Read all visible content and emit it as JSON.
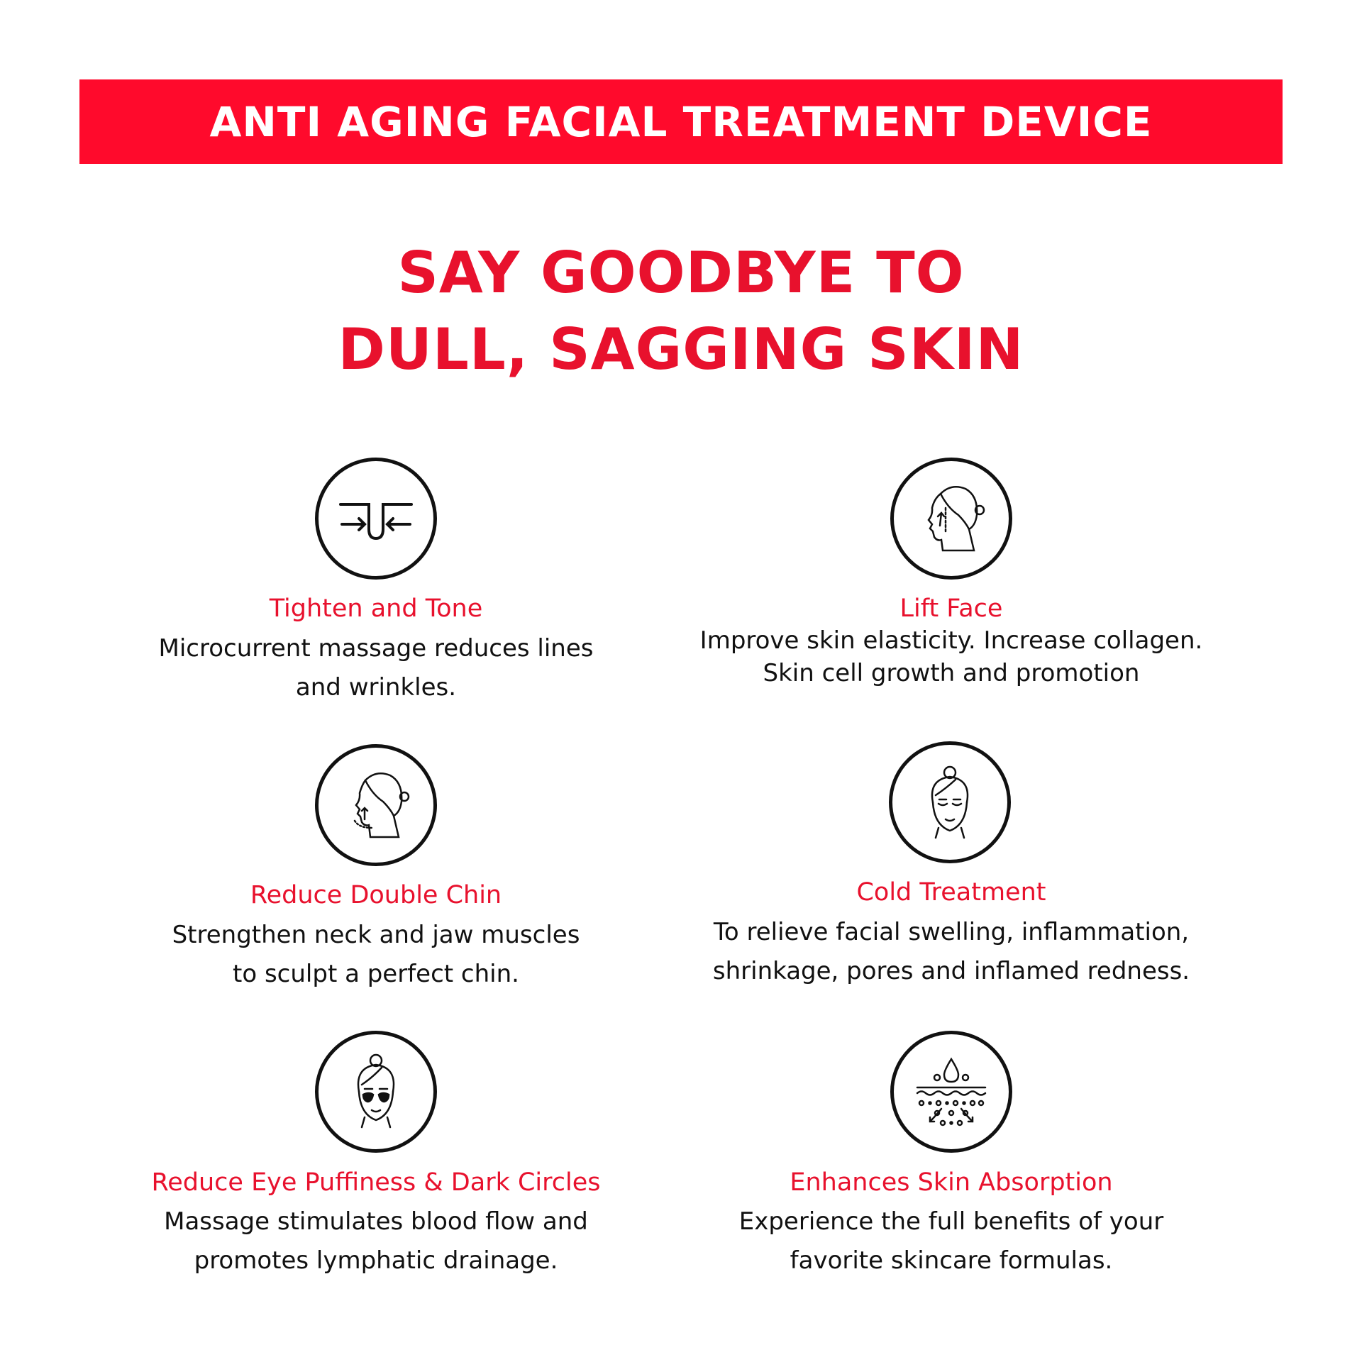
{
  "banner": {
    "title": "ANTI AGING FACIAL TREATMENT DEVICE"
  },
  "headline": {
    "line1": "SAY GOODBYE TO",
    "line2": "DULL, SAGGING SKIN"
  },
  "colors": {
    "banner_red": "#ff0a2c",
    "text_red": "#e8112d",
    "text_dark": "#111111"
  },
  "features": [
    {
      "icon": "pore-tighten-icon",
      "title": "Tighten and Tone",
      "lines": [
        "Microcurrent massage reduces lines",
        "and wrinkles."
      ]
    },
    {
      "icon": "face-lift-profile-icon",
      "title": "Lift Face",
      "lines": [
        "Improve skin elasticity. Increase collagen.",
        "Skin cell growth and promotion"
      ]
    },
    {
      "icon": "chin-profile-icon",
      "title": "Reduce Double Chin",
      "lines": [
        "Strengthen neck and jaw muscles",
        "to sculpt a perfect chin."
      ]
    },
    {
      "icon": "relaxed-face-icon",
      "title": "Cold Treatment",
      "lines": [
        "To relieve facial swelling, inflammation,",
        "shrinkage, pores and inflamed redness."
      ]
    },
    {
      "icon": "eye-patch-face-icon",
      "title": "Reduce Eye Puffiness & Dark Circles",
      "lines": [
        "Massage stimulates blood flow and",
        "promotes lymphatic drainage."
      ]
    },
    {
      "icon": "skin-absorption-icon",
      "title": "Enhances Skin Absorption",
      "lines": [
        "Experience the full benefits of your",
        "favorite skincare formulas."
      ]
    }
  ]
}
